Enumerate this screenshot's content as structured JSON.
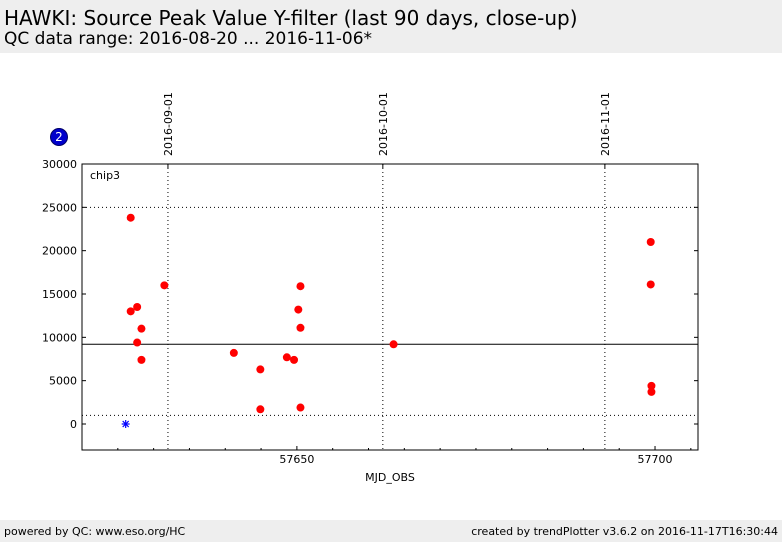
{
  "header": {
    "title": "HAWKI: Source Peak Value Y-filter (last 90 days, close-up)",
    "subtitle": "QC data range: 2016-08-20 ... 2016-11-06*"
  },
  "footer": {
    "left": "powered by QC: www.eso.org/HC",
    "right": "created by trendPlotter v3.6.2 on 2016-11-17T16:30:44"
  },
  "badge": "2",
  "chart_data": {
    "type": "scatter",
    "panel_label": "chip3",
    "xlabel": "MJD_OBS",
    "ylabel": "",
    "xlim": [
      57620,
      57706
    ],
    "ylim": [
      -3000,
      30000
    ],
    "x_ticks": [
      57650,
      57700
    ],
    "x_minor_ticks": [
      57625,
      57630,
      57635,
      57640,
      57645,
      57655,
      57660,
      57665,
      57670,
      57675,
      57680,
      57685,
      57690,
      57695,
      57705
    ],
    "y_ticks": [
      0,
      5000,
      10000,
      15000,
      20000,
      25000,
      30000
    ],
    "date_ticks": [
      {
        "label": "2016-09-01",
        "mjd": 57632
      },
      {
        "label": "2016-10-01",
        "mjd": 57662
      },
      {
        "label": "2016-11-01",
        "mjd": 57693
      }
    ],
    "reference_lines": {
      "median": 9200,
      "upper_limit": 25000,
      "lower_limit": 1000
    },
    "colors": {
      "points": "#ff0000",
      "special_marker": "#0000ff",
      "badge": "#0000cc"
    },
    "series": [
      {
        "points": [
          {
            "x": 57626.8,
            "y": 23800
          },
          {
            "x": 57626.8,
            "y": 13000
          },
          {
            "x": 57627.7,
            "y": 13500
          },
          {
            "x": 57627.7,
            "y": 9400
          },
          {
            "x": 57628.3,
            "y": 11000
          },
          {
            "x": 57628.3,
            "y": 7400
          },
          {
            "x": 57631.5,
            "y": 16000
          },
          {
            "x": 57641.2,
            "y": 8200
          },
          {
            "x": 57644.9,
            "y": 6300
          },
          {
            "x": 57644.9,
            "y": 1700
          },
          {
            "x": 57648.6,
            "y": 7700
          },
          {
            "x": 57649.6,
            "y": 7400
          },
          {
            "x": 57650.2,
            "y": 13200
          },
          {
            "x": 57650.5,
            "y": 15900
          },
          {
            "x": 57650.5,
            "y": 11100
          },
          {
            "x": 57650.5,
            "y": 1900
          },
          {
            "x": 57663.5,
            "y": 9200
          },
          {
            "x": 57699.4,
            "y": 21000
          },
          {
            "x": 57699.4,
            "y": 16100
          },
          {
            "x": 57699.5,
            "y": 4400
          },
          {
            "x": 57699.5,
            "y": 3700
          }
        ]
      }
    ],
    "special_points": [
      {
        "x": 57626.1,
        "y": 0
      }
    ]
  }
}
